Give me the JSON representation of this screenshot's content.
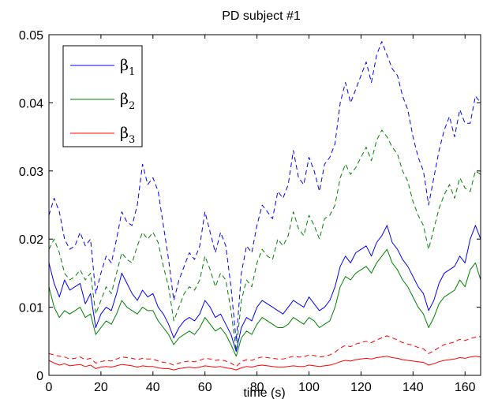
{
  "chart_data": {
    "type": "line",
    "title": "PD subject #1",
    "xlabel": "time (s)",
    "ylabel": "",
    "xlim": [
      0,
      166
    ],
    "ylim": [
      0,
      0.05
    ],
    "xticks": [
      0,
      20,
      40,
      60,
      80,
      100,
      120,
      140,
      160
    ],
    "xtick_labels": [
      "0",
      "20",
      "40",
      "60",
      "80",
      "100",
      "120",
      "140",
      "160"
    ],
    "yticks": [
      0,
      0.01,
      0.02,
      0.03,
      0.04,
      0.05
    ],
    "ytick_labels": [
      "0",
      "0.01",
      "0.02",
      "0.03",
      "0.04",
      "0.05"
    ],
    "grid": false,
    "legend_position": "top-left",
    "x": [
      0,
      2,
      4,
      6,
      8,
      10,
      12,
      14,
      16,
      18,
      20,
      22,
      24,
      26,
      28,
      30,
      32,
      34,
      36,
      38,
      40,
      42,
      44,
      46,
      48,
      50,
      52,
      54,
      56,
      58,
      60,
      62,
      64,
      66,
      68,
      70,
      72,
      74,
      76,
      78,
      80,
      82,
      84,
      86,
      88,
      90,
      92,
      94,
      96,
      98,
      100,
      102,
      104,
      106,
      108,
      110,
      112,
      114,
      116,
      118,
      120,
      122,
      124,
      126,
      128,
      130,
      132,
      134,
      136,
      138,
      140,
      142,
      144,
      146,
      148,
      150,
      152,
      154,
      156,
      158,
      160,
      162,
      164,
      166
    ],
    "series": [
      {
        "name": "β",
        "subscript": "1",
        "color": "#0000ff",
        "style": "solid",
        "values": [
          0.0165,
          0.0135,
          0.0115,
          0.014,
          0.0125,
          0.013,
          0.0135,
          0.0105,
          0.012,
          0.007,
          0.009,
          0.01,
          0.0095,
          0.012,
          0.015,
          0.0135,
          0.012,
          0.011,
          0.0125,
          0.0115,
          0.012,
          0.01,
          0.009,
          0.0075,
          0.0055,
          0.007,
          0.008,
          0.0085,
          0.008,
          0.009,
          0.011,
          0.01,
          0.0085,
          0.009,
          0.0075,
          0.006,
          0.0035,
          0.007,
          0.0085,
          0.008,
          0.01,
          0.011,
          0.0105,
          0.01,
          0.0095,
          0.009,
          0.01,
          0.011,
          0.0105,
          0.01,
          0.0115,
          0.0105,
          0.0095,
          0.01,
          0.011,
          0.013,
          0.016,
          0.0175,
          0.0165,
          0.018,
          0.0185,
          0.019,
          0.0175,
          0.0195,
          0.0205,
          0.022,
          0.0195,
          0.0185,
          0.017,
          0.016,
          0.0145,
          0.013,
          0.012,
          0.0095,
          0.011,
          0.0135,
          0.015,
          0.0155,
          0.016,
          0.0175,
          0.0165,
          0.02,
          0.022,
          0.02
        ]
      },
      {
        "name": "β",
        "subscript": "2",
        "color": "#008000",
        "style": "solid",
        "values": [
          0.013,
          0.01,
          0.0085,
          0.0095,
          0.009,
          0.0095,
          0.01,
          0.0085,
          0.009,
          0.006,
          0.007,
          0.008,
          0.0075,
          0.009,
          0.011,
          0.01,
          0.0095,
          0.009,
          0.01,
          0.0095,
          0.0095,
          0.008,
          0.007,
          0.006,
          0.0045,
          0.0055,
          0.006,
          0.0065,
          0.006,
          0.007,
          0.0085,
          0.0075,
          0.0065,
          0.007,
          0.006,
          0.0045,
          0.0028,
          0.0055,
          0.0065,
          0.006,
          0.0075,
          0.0085,
          0.008,
          0.0075,
          0.007,
          0.007,
          0.0075,
          0.0085,
          0.008,
          0.0075,
          0.0085,
          0.008,
          0.007,
          0.0075,
          0.008,
          0.01,
          0.013,
          0.0145,
          0.014,
          0.015,
          0.0155,
          0.016,
          0.015,
          0.0165,
          0.0175,
          0.0185,
          0.0165,
          0.0155,
          0.014,
          0.013,
          0.0115,
          0.01,
          0.009,
          0.007,
          0.0085,
          0.0105,
          0.0115,
          0.012,
          0.0125,
          0.014,
          0.013,
          0.0155,
          0.0165,
          0.014
        ]
      },
      {
        "name": "β",
        "subscript": "3",
        "color": "#ff0000",
        "style": "solid",
        "values": [
          0.0022,
          0.0018,
          0.0015,
          0.0017,
          0.0014,
          0.0015,
          0.0016,
          0.0013,
          0.0015,
          0.001,
          0.0012,
          0.0013,
          0.0012,
          0.0014,
          0.0016,
          0.0015,
          0.0014,
          0.0012,
          0.0014,
          0.0013,
          0.0013,
          0.0011,
          0.001,
          0.001,
          0.0008,
          0.001,
          0.0011,
          0.0012,
          0.0011,
          0.0012,
          0.0014,
          0.0013,
          0.0012,
          0.0013,
          0.0011,
          0.001,
          0.0008,
          0.0011,
          0.0013,
          0.0012,
          0.0014,
          0.0015,
          0.0014,
          0.0013,
          0.0012,
          0.0012,
          0.0013,
          0.0014,
          0.0013,
          0.0013,
          0.0015,
          0.0014,
          0.0013,
          0.0014,
          0.0015,
          0.0017,
          0.002,
          0.0022,
          0.0021,
          0.0023,
          0.0024,
          0.0025,
          0.0024,
          0.0026,
          0.0027,
          0.0028,
          0.0026,
          0.0025,
          0.0023,
          0.0022,
          0.0021,
          0.002,
          0.0019,
          0.0015,
          0.0017,
          0.002,
          0.0022,
          0.0023,
          0.0024,
          0.0026,
          0.0025,
          0.0027,
          0.0028,
          0.0027
        ]
      },
      {
        "color": "#0000ff",
        "style": "dashed",
        "values": [
          0.0235,
          0.026,
          0.024,
          0.02,
          0.0185,
          0.019,
          0.021,
          0.019,
          0.02,
          0.012,
          0.015,
          0.0175,
          0.0165,
          0.02,
          0.024,
          0.0225,
          0.022,
          0.025,
          0.031,
          0.028,
          0.029,
          0.027,
          0.022,
          0.017,
          0.011,
          0.014,
          0.016,
          0.018,
          0.017,
          0.019,
          0.024,
          0.021,
          0.018,
          0.021,
          0.019,
          0.013,
          0.005,
          0.015,
          0.019,
          0.018,
          0.022,
          0.025,
          0.024,
          0.023,
          0.027,
          0.026,
          0.028,
          0.033,
          0.029,
          0.028,
          0.032,
          0.03,
          0.027,
          0.031,
          0.032,
          0.034,
          0.04,
          0.043,
          0.04,
          0.042,
          0.044,
          0.046,
          0.043,
          0.047,
          0.049,
          0.047,
          0.045,
          0.044,
          0.041,
          0.039,
          0.035,
          0.032,
          0.03,
          0.025,
          0.029,
          0.033,
          0.036,
          0.038,
          0.035,
          0.039,
          0.037,
          0.037,
          0.041,
          0.04
        ]
      },
      {
        "color": "#008000",
        "style": "dashed",
        "values": [
          0.0185,
          0.02,
          0.018,
          0.015,
          0.014,
          0.0145,
          0.0155,
          0.014,
          0.015,
          0.009,
          0.011,
          0.013,
          0.012,
          0.015,
          0.018,
          0.017,
          0.0165,
          0.019,
          0.021,
          0.02,
          0.021,
          0.0195,
          0.016,
          0.013,
          0.008,
          0.01,
          0.012,
          0.013,
          0.0125,
          0.014,
          0.0175,
          0.0155,
          0.013,
          0.015,
          0.014,
          0.0095,
          0.0035,
          0.011,
          0.014,
          0.013,
          0.0165,
          0.0185,
          0.0175,
          0.017,
          0.02,
          0.019,
          0.0205,
          0.024,
          0.0215,
          0.0205,
          0.0235,
          0.022,
          0.02,
          0.023,
          0.0235,
          0.025,
          0.029,
          0.031,
          0.0295,
          0.0305,
          0.032,
          0.0335,
          0.0315,
          0.0345,
          0.036,
          0.035,
          0.0335,
          0.0325,
          0.03,
          0.0285,
          0.0255,
          0.0235,
          0.022,
          0.0185,
          0.0215,
          0.0245,
          0.0265,
          0.028,
          0.026,
          0.029,
          0.0275,
          0.027,
          0.03,
          0.0295
        ]
      },
      {
        "color": "#ff0000",
        "style": "dashed",
        "values": [
          0.0032,
          0.003,
          0.0028,
          0.0027,
          0.0024,
          0.0025,
          0.0027,
          0.0023,
          0.0025,
          0.0018,
          0.002,
          0.0022,
          0.0021,
          0.0024,
          0.0027,
          0.0026,
          0.0025,
          0.0023,
          0.0025,
          0.0024,
          0.0024,
          0.0021,
          0.0019,
          0.0018,
          0.0015,
          0.0018,
          0.002,
          0.0021,
          0.002,
          0.0022,
          0.0025,
          0.0024,
          0.0022,
          0.0023,
          0.0021,
          0.0018,
          0.0013,
          0.002,
          0.0023,
          0.0022,
          0.0025,
          0.0027,
          0.0026,
          0.0025,
          0.0024,
          0.0024,
          0.0026,
          0.0028,
          0.0027,
          0.0027,
          0.003,
          0.0029,
          0.0027,
          0.0028,
          0.003,
          0.0034,
          0.004,
          0.0044,
          0.0042,
          0.0046,
          0.0048,
          0.005,
          0.0048,
          0.0052,
          0.0055,
          0.0058,
          0.0055,
          0.0052,
          0.0048,
          0.0046,
          0.0044,
          0.0041,
          0.0039,
          0.0032,
          0.0036,
          0.0041,
          0.0045,
          0.0047,
          0.0049,
          0.0053,
          0.0051,
          0.0054,
          0.0056,
          0.0057
        ]
      }
    ]
  }
}
